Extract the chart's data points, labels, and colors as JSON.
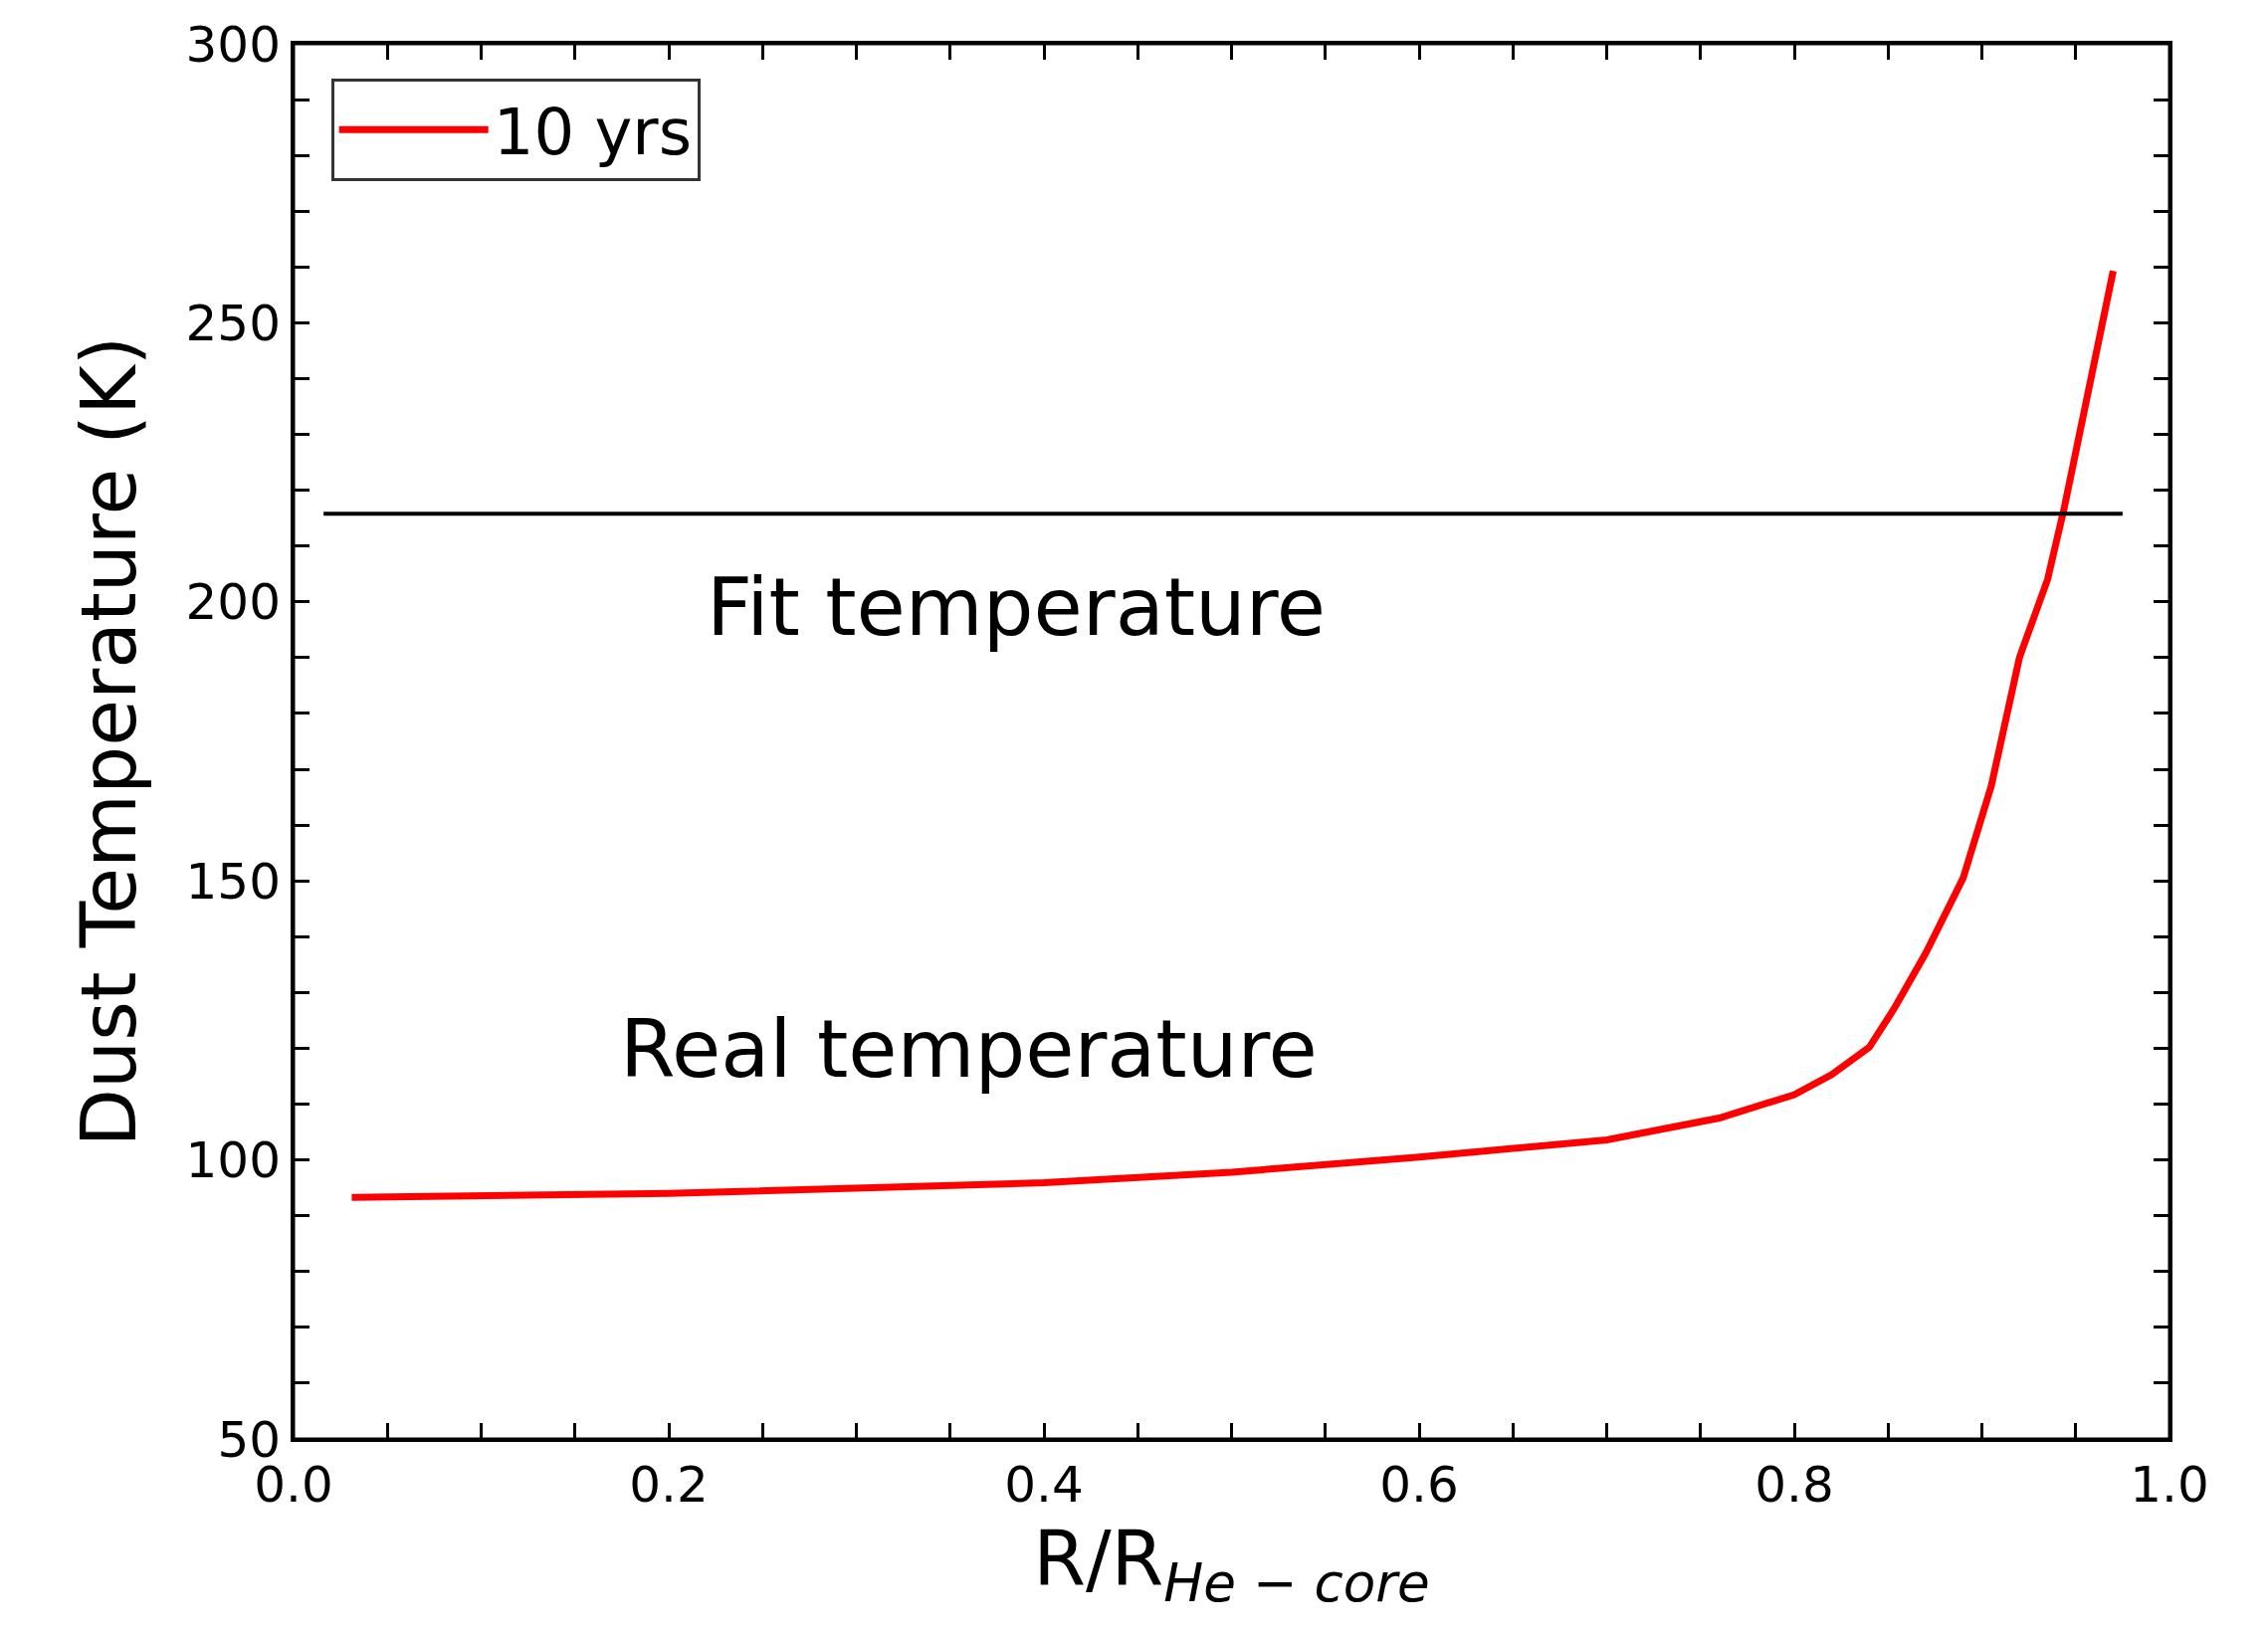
{
  "chart_data": {
    "type": "line",
    "xlabel": "R/R$_{He − core}$",
    "ylabel": "Dust Temperature (K)",
    "xlim": [
      0.0,
      1.0
    ],
    "xticks": [
      {
        "value": 0.0,
        "label": "0.0"
      },
      {
        "value": 0.05,
        "label": null
      },
      {
        "value": 0.1,
        "label": null
      },
      {
        "value": 0.15,
        "label": null
      },
      0.2,
      {
        "value": 0.25,
        "label": null
      },
      {
        "value": 0.3,
        "label": null
      },
      {
        "value": 0.35,
        "label": null
      },
      0.4,
      {
        "value": 0.45,
        "label": null
      },
      {
        "value": 0.5,
        "label": null
      },
      {
        "value": 0.55,
        "label": null
      },
      0.6,
      {
        "value": 0.65,
        "label": null
      },
      {
        "value": 0.7,
        "label": null
      },
      {
        "value": 0.75,
        "label": null
      },
      0.8,
      {
        "value": 0.85,
        "label": null
      },
      {
        "value": 0.9,
        "label": null
      },
      {
        "value": 0.95,
        "label": null
      },
      {
        "value": 1.0,
        "label": "1.0"
      }
    ],
    "ylim": [
      50,
      300
    ],
    "yticks": [
      50,
      {
        "value": 60,
        "label": null
      },
      {
        "value": 70,
        "label": null
      },
      {
        "value": 80,
        "label": null
      },
      {
        "value": 90,
        "label": null
      },
      100,
      {
        "value": 110,
        "label": null
      },
      {
        "value": 120,
        "label": null
      },
      {
        "value": 130,
        "label": null
      },
      {
        "value": 140,
        "label": null
      },
      150,
      {
        "value": 160,
        "label": null
      },
      {
        "value": 170,
        "label": null
      },
      {
        "value": 180,
        "label": null
      },
      {
        "value": 190,
        "label": null
      },
      200,
      {
        "value": 210,
        "label": null
      },
      {
        "value": 220,
        "label": null
      },
      {
        "value": 230,
        "label": null
      },
      {
        "value": 240,
        "label": null
      },
      250,
      {
        "value": 260,
        "label": null
      },
      {
        "value": 270,
        "label": null
      },
      {
        "value": 280,
        "label": null
      },
      {
        "value": 290,
        "label": null
      },
      300
    ],
    "series": [
      {
        "name": "10 yrs",
        "color": "#ff0000",
        "x": [
          0.031,
          0.2,
          0.4,
          0.5,
          0.6,
          0.7,
          0.76,
          0.8,
          0.82,
          0.84,
          0.853,
          0.87,
          0.89,
          0.905,
          0.92,
          0.935,
          0.944,
          0.97
        ],
        "values": [
          93.3,
          94.0,
          95.9,
          97.8,
          100.5,
          103.6,
          107.5,
          111.7,
          115.3,
          120.2,
          127,
          137,
          150.5,
          167,
          190,
          204,
          217,
          259.3
        ]
      },
      {
        "color": "#000000",
        "x": [
          0.016,
          0.975
        ],
        "values": [
          215.8,
          215.8
        ]
      }
    ],
    "annotations": [
      "Fit temperature",
      "Real temperature"
    ],
    "legend": "top left",
    "marker": "none",
    "line_style": "solid"
  }
}
